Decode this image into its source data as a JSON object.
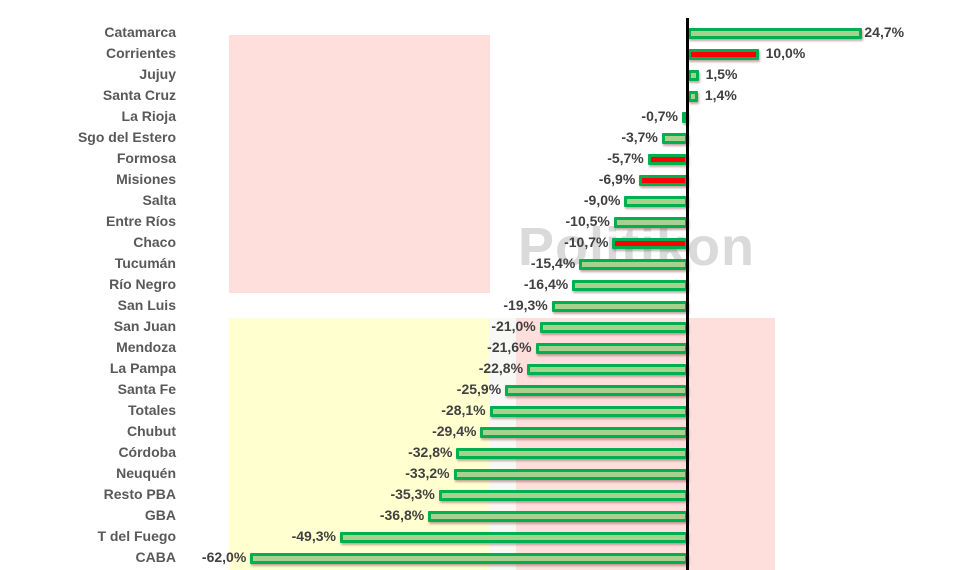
{
  "watermark": "Politikon",
  "colors": {
    "bar_fill": "#a9d18e",
    "bar_highlight_fill": "#ff0000",
    "bar_border": "#00b050",
    "bg_pink": "#ffdfdc",
    "bg_yellow": "#ffffd0",
    "axis": "#000000",
    "label_text": "#595959",
    "value_text": "#404040"
  },
  "chart_data": {
    "type": "bar",
    "orientation": "horizontal",
    "title": "",
    "xlabel": "",
    "ylabel": "",
    "xlim": [
      -62,
      25
    ],
    "grid": false,
    "legend": null,
    "categories": [
      "Catamarca",
      "Corrientes",
      "Jujuy",
      "Santa Cruz",
      "La Rioja",
      "Sgo del Estero",
      "Formosa",
      "Misiones",
      "Salta",
      "Entre Ríos",
      "Chaco",
      "Tucumán",
      "Río Negro",
      "San Luis",
      "San Juan",
      "Mendoza",
      "La Pampa",
      "Santa Fe",
      "Totales",
      "Chubut",
      "Córdoba",
      "Neuquén",
      "Resto PBA",
      "GBA",
      "T del Fuego",
      "CABA"
    ],
    "values": [
      24.7,
      10.0,
      1.5,
      1.4,
      -0.7,
      -3.7,
      -5.7,
      -6.9,
      -9.0,
      -10.5,
      -10.7,
      -15.4,
      -16.4,
      -19.3,
      -21.0,
      -21.6,
      -22.8,
      -25.9,
      -28.1,
      -29.4,
      -32.8,
      -33.2,
      -35.3,
      -36.8,
      -49.3,
      -62.0
    ],
    "value_labels": [
      "24,7%",
      "10,0%",
      "1,5%",
      "1,4%",
      "-0,7%",
      "-3,7%",
      "-5,7%",
      "-6,9%",
      "-9,0%",
      "-10,5%",
      "-10,7%",
      "-15,4%",
      "-16,4%",
      "-19,3%",
      "-21,0%",
      "-21,6%",
      "-22,8%",
      "-25,9%",
      "-28,1%",
      "-29,4%",
      "-32,8%",
      "-33,2%",
      "-35,3%",
      "-36,8%",
      "-49,3%",
      "-62,0%"
    ],
    "highlighted": [
      "Corrientes",
      "Formosa",
      "Misiones",
      "Chaco"
    ],
    "annotations": [
      "Politikon (watermark)"
    ]
  }
}
